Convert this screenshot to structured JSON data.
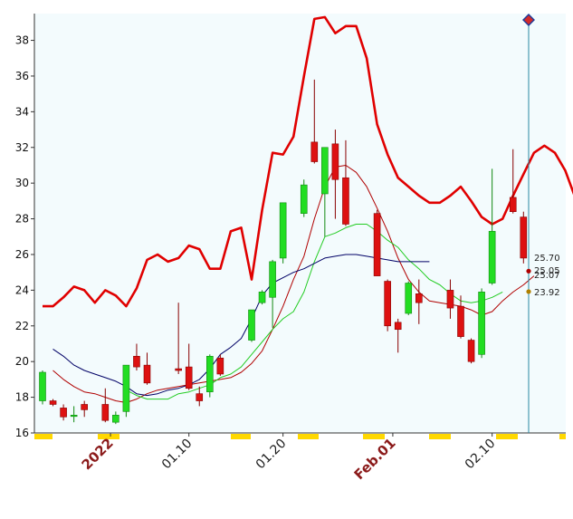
{
  "chart_data": {
    "type": "candlestick",
    "ylim": [
      16,
      39.5
    ],
    "y_ticks": [
      "16",
      "18",
      "20",
      "22",
      "24",
      "26",
      "28",
      "30",
      "32",
      "34",
      "36",
      "38"
    ],
    "x_labels": [
      {
        "text": "2022",
        "at": 6.5,
        "strong": true
      },
      {
        "text": "01.10",
        "at": 14,
        "strong": false
      },
      {
        "text": "01.20",
        "at": 23,
        "strong": false
      },
      {
        "text": "Feb.01",
        "at": 33.5,
        "strong": true
      },
      {
        "text": "02.10",
        "at": 43,
        "strong": false
      }
    ],
    "candles": [
      {
        "o": 17.8,
        "h": 19.5,
        "l": 17.6,
        "c": 19.4
      },
      {
        "o": 17.8,
        "h": 17.9,
        "l": 17.5,
        "c": 17.6
      },
      {
        "o": 17.4,
        "h": 17.6,
        "l": 16.7,
        "c": 16.9
      },
      {
        "o": 17.0,
        "h": 17.5,
        "l": 16.6,
        "c": 17.0
      },
      {
        "o": 17.6,
        "h": 17.8,
        "l": 16.9,
        "c": 17.3
      },
      {
        "o": null,
        "h": null,
        "l": null,
        "c": null
      },
      {
        "o": 17.6,
        "h": 18.5,
        "l": 16.6,
        "c": 16.7
      },
      {
        "o": 16.6,
        "h": 17.2,
        "l": 16.5,
        "c": 17.0
      },
      {
        "o": 17.2,
        "h": 19.8,
        "l": 16.9,
        "c": 19.8
      },
      {
        "o": 20.3,
        "h": 21.0,
        "l": 19.5,
        "c": 19.7
      },
      {
        "o": 19.8,
        "h": 20.5,
        "l": 18.7,
        "c": 18.8
      },
      {
        "o": null,
        "h": null,
        "l": null,
        "c": null
      },
      {
        "o": null,
        "h": null,
        "l": null,
        "c": null
      },
      {
        "o": 19.6,
        "h": 23.3,
        "l": 19.3,
        "c": 19.5
      },
      {
        "o": 19.7,
        "h": 21.0,
        "l": 18.4,
        "c": 18.5
      },
      {
        "o": 18.2,
        "h": 18.6,
        "l": 17.5,
        "c": 17.8
      },
      {
        "o": 18.3,
        "h": 20.4,
        "l": 18.0,
        "c": 20.3
      },
      {
        "o": 20.2,
        "h": 20.4,
        "l": 19.2,
        "c": 19.3
      },
      {
        "o": null,
        "h": null,
        "l": null,
        "c": null
      },
      {
        "o": null,
        "h": null,
        "l": null,
        "c": null
      },
      {
        "o": 21.2,
        "h": 22.9,
        "l": 21.1,
        "c": 22.9
      },
      {
        "o": 23.3,
        "h": 24.0,
        "l": 23.2,
        "c": 23.9
      },
      {
        "o": 23.6,
        "h": 25.7,
        "l": 21.9,
        "c": 25.6
      },
      {
        "o": 25.8,
        "h": 28.9,
        "l": 25.5,
        "c": 28.9
      },
      {
        "o": null,
        "h": null,
        "l": null,
        "c": null
      },
      {
        "o": 28.3,
        "h": 30.2,
        "l": 28.1,
        "c": 29.9
      },
      {
        "o": 32.3,
        "h": 35.8,
        "l": 31.1,
        "c": 31.2
      },
      {
        "o": 29.4,
        "h": 31.9,
        "l": 27.0,
        "c": 32.0
      },
      {
        "o": 32.2,
        "h": 33.0,
        "l": 28.0,
        "c": 30.2
      },
      {
        "o": 30.3,
        "h": 32.4,
        "l": 27.6,
        "c": 27.7
      },
      {
        "o": null,
        "h": null,
        "l": null,
        "c": null
      },
      {
        "o": null,
        "h": null,
        "l": null,
        "c": null
      },
      {
        "o": 28.3,
        "h": 28.5,
        "l": 24.8,
        "c": 24.8
      },
      {
        "o": 24.5,
        "h": 24.6,
        "l": 21.7,
        "c": 22.0
      },
      {
        "o": 22.2,
        "h": 22.4,
        "l": 20.5,
        "c": 21.8
      },
      {
        "o": 22.7,
        "h": 24.5,
        "l": 22.6,
        "c": 24.4
      },
      {
        "o": 23.8,
        "h": 24.6,
        "l": 22.1,
        "c": 23.3
      },
      {
        "o": null,
        "h": null,
        "l": null,
        "c": null
      },
      {
        "o": null,
        "h": null,
        "l": null,
        "c": null
      },
      {
        "o": 24.0,
        "h": 24.6,
        "l": 22.4,
        "c": 23.0
      },
      {
        "o": 23.1,
        "h": 23.7,
        "l": 21.3,
        "c": 21.4
      },
      {
        "o": 21.2,
        "h": 21.3,
        "l": 19.9,
        "c": 20.0
      },
      {
        "o": 20.4,
        "h": 24.1,
        "l": 20.2,
        "c": 23.9
      },
      {
        "o": 24.4,
        "h": 30.8,
        "l": 24.3,
        "c": 27.3
      },
      {
        "o": null,
        "h": null,
        "l": null,
        "c": null
      },
      {
        "o": 29.2,
        "h": 31.9,
        "l": 28.3,
        "c": 28.4
      },
      {
        "o": 28.1,
        "h": 28.4,
        "l": 25.5,
        "c": 25.8
      }
    ],
    "series": [
      {
        "color": "#e00000",
        "width": 2.6,
        "values": [
          23.1,
          23.1,
          23.6,
          24.2,
          24.0,
          23.3,
          24.0,
          23.7,
          23.1,
          24.1,
          25.7,
          26.0,
          25.6,
          25.8,
          26.5,
          26.3,
          25.2,
          25.2,
          27.3,
          27.5,
          24.6,
          28.5,
          31.7,
          31.6,
          32.6,
          36.0,
          39.2,
          39.3,
          38.4,
          38.8,
          38.8,
          37.0,
          33.3,
          31.6,
          30.3,
          29.8,
          29.3,
          28.9,
          28.9,
          29.3,
          29.8,
          29.0,
          28.1,
          27.7,
          28.0,
          29.3,
          30.5,
          31.7,
          32.1,
          31.7,
          30.7,
          29.1,
          28.0,
          27.1
        ]
      },
      {
        "color": "#b00000",
        "width": 1.0,
        "values": [
          null,
          19.5,
          19.0,
          18.6,
          18.3,
          18.2,
          18.0,
          17.8,
          17.7,
          17.9,
          18.2,
          18.4,
          18.5,
          18.6,
          18.7,
          18.8,
          18.9,
          19.0,
          19.1,
          19.4,
          19.9,
          20.6,
          21.8,
          23.1,
          24.6,
          25.9,
          28.0,
          29.8,
          30.9,
          31.0,
          30.6,
          29.8,
          28.6,
          27.3,
          25.8,
          24.6,
          23.9,
          23.4,
          23.3,
          23.2,
          23.1,
          22.9,
          22.6,
          22.8,
          23.4,
          23.9,
          24.3,
          24.8
        ]
      },
      {
        "color": "#22cc22",
        "width": 1.0,
        "values": [
          null,
          null,
          null,
          null,
          null,
          null,
          null,
          null,
          18.4,
          18.1,
          17.9,
          17.9,
          17.9,
          18.2,
          18.3,
          18.5,
          18.7,
          19.1,
          19.3,
          19.7,
          20.4,
          21.1,
          21.8,
          22.4,
          22.8,
          23.9,
          25.6,
          27.0,
          27.2,
          27.5,
          27.7,
          27.7,
          27.3,
          26.8,
          26.4,
          25.7,
          25.2,
          24.6,
          24.3,
          23.8,
          23.4,
          23.3,
          23.4,
          23.6,
          23.9
        ]
      },
      {
        "color": "#000066",
        "width": 1.0,
        "values": [
          null,
          20.7,
          20.3,
          19.8,
          19.5,
          19.3,
          19.1,
          18.9,
          18.6,
          18.2,
          18.1,
          18.2,
          18.4,
          18.5,
          18.7,
          19.0,
          19.6,
          20.4,
          20.8,
          21.3,
          22.4,
          23.7,
          24.4,
          24.7,
          25.0,
          25.2,
          25.5,
          25.8,
          25.9,
          26.0,
          26.0,
          25.9,
          25.8,
          25.7,
          25.6,
          25.6,
          25.6,
          25.6
        ]
      }
    ],
    "last_labels": [
      {
        "text": "25.70",
        "value": 25.7,
        "color": "#000066",
        "mark": false
      },
      {
        "text": "25.07",
        "value": 25.07,
        "color": "#b00000",
        "mark": true
      },
      {
        "text": "25.05",
        "value": 25.05,
        "color": "#22cc22",
        "mark": false
      },
      {
        "text": "23.92",
        "value": 23.92,
        "color": "#b08000",
        "mark": true
      }
    ]
  },
  "colors": {
    "plot_bg": "#f3fbfd",
    "up": "#22dd22",
    "down": "#dd1111",
    "up_border": "#118811",
    "down_border": "#880000",
    "axis_band": "#ffd800",
    "cursor": "#2a8aa3"
  }
}
